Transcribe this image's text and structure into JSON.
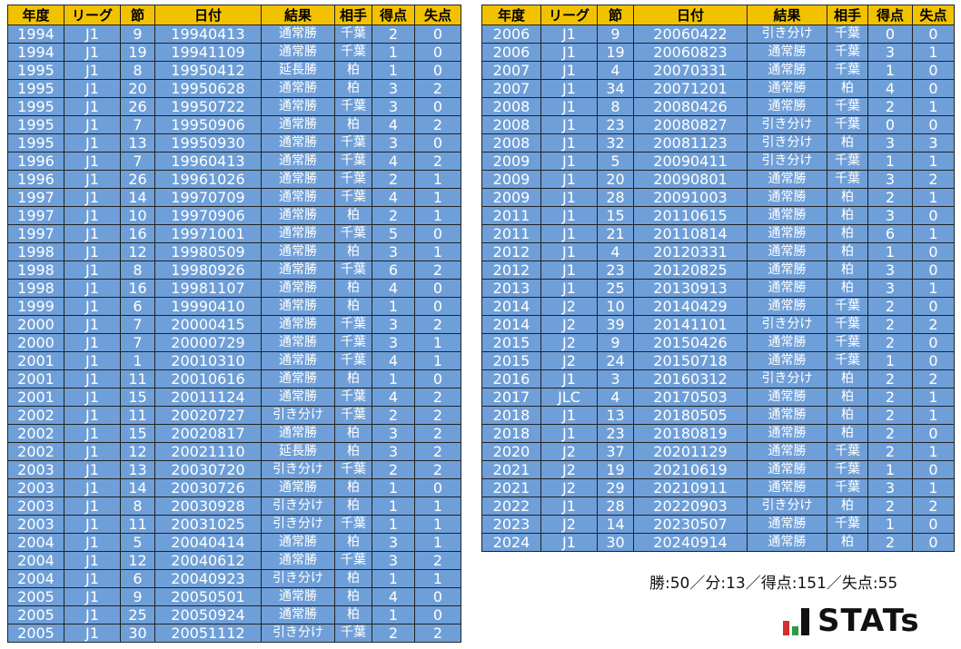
{
  "tables": [
    {
      "header": [
        "年度",
        "リーグ",
        "節",
        "日付",
        "結果",
        "相手",
        "得点",
        "失点"
      ],
      "rows": [
        [
          "1994",
          "J1",
          "9",
          "19940413",
          "通常勝",
          "千葉",
          "2",
          "0"
        ],
        [
          "1994",
          "J1",
          "19",
          "19941109",
          "通常勝",
          "千葉",
          "1",
          "0"
        ],
        [
          "1995",
          "J1",
          "8",
          "19950412",
          "延長勝",
          "柏",
          "1",
          "0"
        ],
        [
          "1995",
          "J1",
          "20",
          "19950628",
          "通常勝",
          "柏",
          "3",
          "2"
        ],
        [
          "1995",
          "J1",
          "26",
          "19950722",
          "通常勝",
          "千葉",
          "3",
          "0"
        ],
        [
          "1995",
          "J1",
          "7",
          "19950906",
          "通常勝",
          "柏",
          "4",
          "2"
        ],
        [
          "1995",
          "J1",
          "13",
          "19950930",
          "通常勝",
          "千葉",
          "3",
          "0"
        ],
        [
          "1996",
          "J1",
          "7",
          "19960413",
          "通常勝",
          "千葉",
          "4",
          "2"
        ],
        [
          "1996",
          "J1",
          "26",
          "19961026",
          "通常勝",
          "千葉",
          "2",
          "1"
        ],
        [
          "1997",
          "J1",
          "14",
          "19970709",
          "通常勝",
          "千葉",
          "4",
          "1"
        ],
        [
          "1997",
          "J1",
          "10",
          "19970906",
          "通常勝",
          "柏",
          "2",
          "1"
        ],
        [
          "1997",
          "J1",
          "16",
          "19971001",
          "通常勝",
          "千葉",
          "5",
          "0"
        ],
        [
          "1998",
          "J1",
          "12",
          "19980509",
          "通常勝",
          "柏",
          "3",
          "1"
        ],
        [
          "1998",
          "J1",
          "8",
          "19980926",
          "通常勝",
          "千葉",
          "6",
          "2"
        ],
        [
          "1998",
          "J1",
          "16",
          "19981107",
          "通常勝",
          "柏",
          "4",
          "0"
        ],
        [
          "1999",
          "J1",
          "6",
          "19990410",
          "通常勝",
          "柏",
          "1",
          "0"
        ],
        [
          "2000",
          "J1",
          "7",
          "20000415",
          "通常勝",
          "千葉",
          "3",
          "2"
        ],
        [
          "2000",
          "J1",
          "7",
          "20000729",
          "通常勝",
          "千葉",
          "3",
          "1"
        ],
        [
          "2001",
          "J1",
          "1",
          "20010310",
          "通常勝",
          "千葉",
          "4",
          "1"
        ],
        [
          "2001",
          "J1",
          "11",
          "20010616",
          "通常勝",
          "柏",
          "1",
          "0"
        ],
        [
          "2001",
          "J1",
          "15",
          "20011124",
          "通常勝",
          "千葉",
          "4",
          "2"
        ],
        [
          "2002",
          "J1",
          "11",
          "20020727",
          "引き分け",
          "千葉",
          "2",
          "2"
        ],
        [
          "2002",
          "J1",
          "15",
          "20020817",
          "通常勝",
          "柏",
          "3",
          "2"
        ],
        [
          "2002",
          "J1",
          "12",
          "20021110",
          "延長勝",
          "柏",
          "3",
          "2"
        ],
        [
          "2003",
          "J1",
          "13",
          "20030720",
          "引き分け",
          "千葉",
          "2",
          "2"
        ],
        [
          "2003",
          "J1",
          "14",
          "20030726",
          "通常勝",
          "柏",
          "1",
          "0"
        ],
        [
          "2003",
          "J1",
          "8",
          "20030928",
          "引き分け",
          "柏",
          "1",
          "1"
        ],
        [
          "2003",
          "J1",
          "11",
          "20031025",
          "引き分け",
          "千葉",
          "1",
          "1"
        ],
        [
          "2004",
          "J1",
          "5",
          "20040414",
          "通常勝",
          "柏",
          "3",
          "1"
        ],
        [
          "2004",
          "J1",
          "12",
          "20040612",
          "通常勝",
          "千葉",
          "3",
          "2"
        ],
        [
          "2004",
          "J1",
          "6",
          "20040923",
          "引き分け",
          "柏",
          "1",
          "1"
        ],
        [
          "2005",
          "J1",
          "9",
          "20050501",
          "通常勝",
          "柏",
          "4",
          "0"
        ],
        [
          "2005",
          "J1",
          "25",
          "20050924",
          "通常勝",
          "柏",
          "1",
          "0"
        ],
        [
          "2005",
          "J1",
          "30",
          "20051112",
          "引き分け",
          "千葉",
          "2",
          "2"
        ]
      ]
    },
    {
      "header": [
        "年度",
        "リーグ",
        "節",
        "日付",
        "結果",
        "相手",
        "得点",
        "失点"
      ],
      "rows": [
        [
          "2006",
          "J1",
          "9",
          "20060422",
          "引き分け",
          "千葉",
          "0",
          "0"
        ],
        [
          "2006",
          "J1",
          "19",
          "20060823",
          "通常勝",
          "千葉",
          "3",
          "1"
        ],
        [
          "2007",
          "J1",
          "4",
          "20070331",
          "通常勝",
          "千葉",
          "1",
          "0"
        ],
        [
          "2007",
          "J1",
          "34",
          "20071201",
          "通常勝",
          "柏",
          "4",
          "0"
        ],
        [
          "2008",
          "J1",
          "8",
          "20080426",
          "通常勝",
          "千葉",
          "2",
          "1"
        ],
        [
          "2008",
          "J1",
          "23",
          "20080827",
          "引き分け",
          "千葉",
          "0",
          "0"
        ],
        [
          "2008",
          "J1",
          "32",
          "20081123",
          "引き分け",
          "柏",
          "3",
          "3"
        ],
        [
          "2009",
          "J1",
          "5",
          "20090411",
          "引き分け",
          "千葉",
          "1",
          "1"
        ],
        [
          "2009",
          "J1",
          "20",
          "20090801",
          "通常勝",
          "千葉",
          "3",
          "2"
        ],
        [
          "2009",
          "J1",
          "28",
          "20091003",
          "通常勝",
          "柏",
          "2",
          "1"
        ],
        [
          "2011",
          "J1",
          "15",
          "20110615",
          "通常勝",
          "柏",
          "3",
          "0"
        ],
        [
          "2011",
          "J1",
          "21",
          "20110814",
          "通常勝",
          "柏",
          "6",
          "1"
        ],
        [
          "2012",
          "J1",
          "4",
          "20120331",
          "通常勝",
          "柏",
          "1",
          "0"
        ],
        [
          "2012",
          "J1",
          "23",
          "20120825",
          "通常勝",
          "柏",
          "3",
          "0"
        ],
        [
          "2013",
          "J1",
          "25",
          "20130913",
          "通常勝",
          "柏",
          "3",
          "1"
        ],
        [
          "2014",
          "J2",
          "10",
          "20140429",
          "通常勝",
          "千葉",
          "2",
          "0"
        ],
        [
          "2014",
          "J2",
          "39",
          "20141101",
          "引き分け",
          "千葉",
          "2",
          "2"
        ],
        [
          "2015",
          "J2",
          "9",
          "20150426",
          "通常勝",
          "千葉",
          "2",
          "0"
        ],
        [
          "2015",
          "J2",
          "24",
          "20150718",
          "通常勝",
          "千葉",
          "1",
          "0"
        ],
        [
          "2016",
          "J1",
          "3",
          "20160312",
          "引き分け",
          "柏",
          "2",
          "2"
        ],
        [
          "2017",
          "JLC",
          "4",
          "20170503",
          "通常勝",
          "柏",
          "2",
          "1"
        ],
        [
          "2018",
          "J1",
          "13",
          "20180505",
          "通常勝",
          "柏",
          "2",
          "1"
        ],
        [
          "2018",
          "J1",
          "23",
          "20180819",
          "通常勝",
          "柏",
          "2",
          "0"
        ],
        [
          "2020",
          "J2",
          "37",
          "20201129",
          "通常勝",
          "千葉",
          "2",
          "1"
        ],
        [
          "2021",
          "J2",
          "19",
          "20210619",
          "通常勝",
          "千葉",
          "1",
          "0"
        ],
        [
          "2021",
          "J2",
          "29",
          "20210911",
          "通常勝",
          "千葉",
          "3",
          "1"
        ],
        [
          "2022",
          "J1",
          "28",
          "20220903",
          "引き分け",
          "柏",
          "2",
          "2"
        ],
        [
          "2023",
          "J2",
          "14",
          "20230507",
          "通常勝",
          "千葉",
          "1",
          "0"
        ],
        [
          "2024",
          "J1",
          "30",
          "20240914",
          "通常勝",
          "柏",
          "2",
          "0"
        ]
      ]
    }
  ],
  "summary": "勝:50／分:13／得点:151／失点:55",
  "logo": "STATs"
}
